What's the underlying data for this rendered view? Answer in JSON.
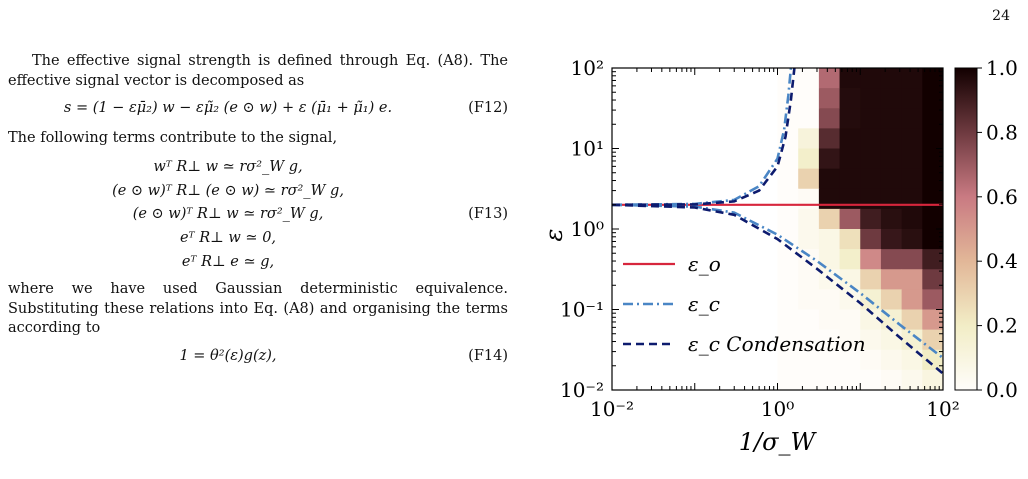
{
  "page_number": "24",
  "text": {
    "p1": "The effective signal strength is defined through Eq. (A8). The effective signal vector is decomposed as",
    "eq_f12": "s = (1 − εμ̄₂) w − εμ̃₂ (e ⊙ w) + ε (μ̄₁ + μ̃₁) e.",
    "eq_f12_tag": "(F12)",
    "p2": "The following terms contribute to the signal,",
    "eq_f13_lines": [
      "wᵀ R⊥ w ≃ rσ²_W g,",
      "(e ⊙ w)ᵀ R⊥ (e ⊙ w) ≃ rσ²_W g,",
      "(e ⊙ w)ᵀ R⊥ w ≃ rσ²_W g,",
      "eᵀ R⊥ w ≃ 0,",
      "eᵀ R⊥ e ≃ g,"
    ],
    "eq_f13_tag": "(F13)",
    "p3": "where we have used Gaussian deterministic equivalence. Substituting these relations into Eq. (A8) and organising the terms according to",
    "eq_f14": "1 = θ²(ε)g(z),",
    "eq_f14_tag": "(F14)"
  },
  "chart_data": {
    "type": "heatmap",
    "xlabel": "1/σ_W",
    "ylabel": "ε",
    "x_scale": "log",
    "y_scale": "log",
    "xlim": [
      0.01,
      100
    ],
    "ylim": [
      0.01,
      100
    ],
    "x_ticks": [
      "10⁻²",
      "10⁰",
      "10²"
    ],
    "y_ticks": [
      "10⁻²",
      "10⁻¹",
      "10⁰",
      "10¹",
      "10²"
    ],
    "colorbar": {
      "min": 0.0,
      "max": 1.0,
      "ticks": [
        "0.0",
        "0.2",
        "0.4",
        "0.6",
        "0.8",
        "1.0"
      ]
    },
    "grid": false,
    "legend_position": "lower-left",
    "heatmap": {
      "x_bin_edges_log10": [
        0.0,
        0.25,
        0.5,
        0.75,
        1.0,
        1.25,
        1.5,
        1.75,
        2.0
      ],
      "y_bin_edges_log10": [
        -2.0,
        -1.75,
        -1.5,
        -1.25,
        -1.0,
        -0.75,
        -0.5,
        -0.25,
        0.0,
        0.25,
        0.5,
        0.75,
        1.0,
        1.25,
        1.5,
        1.75,
        2.0
      ],
      "rows_top_to_bottom": [
        [
          0.0,
          0.0,
          0.65,
          0.97,
          0.97,
          0.97,
          0.97,
          1.0
        ],
        [
          0.0,
          0.0,
          0.7,
          0.96,
          0.97,
          0.97,
          0.97,
          1.0
        ],
        [
          0.0,
          0.0,
          0.75,
          0.96,
          0.97,
          0.97,
          0.97,
          1.0
        ],
        [
          0.0,
          0.12,
          0.85,
          0.97,
          0.97,
          0.97,
          0.97,
          1.0
        ],
        [
          0.0,
          0.18,
          0.93,
          0.97,
          0.97,
          0.97,
          0.97,
          1.0
        ],
        [
          0.0,
          0.3,
          0.97,
          0.97,
          0.97,
          0.97,
          0.97,
          1.0
        ],
        [
          0.0,
          0.02,
          0.97,
          0.97,
          0.97,
          0.97,
          0.97,
          1.0
        ],
        [
          0.0,
          0.05,
          0.3,
          0.7,
          0.9,
          0.95,
          0.97,
          1.0
        ],
        [
          0.0,
          0.05,
          0.08,
          0.25,
          0.8,
          0.92,
          0.95,
          1.0
        ],
        [
          0.0,
          0.02,
          0.08,
          0.18,
          0.55,
          0.75,
          0.75,
          0.9
        ],
        [
          0.0,
          0.02,
          0.05,
          0.08,
          0.3,
          0.5,
          0.5,
          0.8
        ],
        [
          0.0,
          0.02,
          0.02,
          0.05,
          0.15,
          0.3,
          0.5,
          0.7
        ],
        [
          0.0,
          0.0,
          0.02,
          0.02,
          0.08,
          0.15,
          0.3,
          0.5
        ],
        [
          0.0,
          0.0,
          0.0,
          0.02,
          0.05,
          0.08,
          0.15,
          0.3
        ],
        [
          0.0,
          0.0,
          0.0,
          0.0,
          0.02,
          0.05,
          0.08,
          0.2
        ],
        [
          0.0,
          0.0,
          0.0,
          0.0,
          0.0,
          0.02,
          0.05,
          0.1
        ]
      ]
    },
    "series": [
      {
        "name": "ε_o",
        "style": "solid",
        "color": "#d7263d",
        "x": [
          0.01,
          100
        ],
        "y": [
          2.0,
          2.0
        ]
      },
      {
        "name": "ε_c",
        "style": "dashdot",
        "color": "#4a86c5",
        "x": [
          0.01,
          0.1,
          0.3,
          0.6,
          1.0,
          1.2,
          1.35,
          1.45
        ],
        "y": [
          2.0,
          2.05,
          2.3,
          3.4,
          7.5,
          17,
          45,
          100
        ],
        "x2": [
          0.01,
          0.1,
          0.3,
          1.0,
          3.0,
          10,
          30,
          100
        ],
        "y2": [
          2.0,
          1.9,
          1.6,
          0.85,
          0.4,
          0.16,
          0.065,
          0.025
        ]
      },
      {
        "name": "ε_c Condensation",
        "style": "dashed",
        "color": "#0d1b6e",
        "x": [
          0.01,
          0.1,
          0.3,
          0.6,
          1.0,
          1.25,
          1.45,
          1.6
        ],
        "y": [
          2.0,
          2.02,
          2.2,
          3.0,
          6.0,
          14,
          40,
          100
        ],
        "x2": [
          0.01,
          0.1,
          0.3,
          1.0,
          3.0,
          10,
          30,
          100
        ],
        "y2": [
          2.0,
          1.85,
          1.5,
          0.75,
          0.32,
          0.12,
          0.045,
          0.016
        ]
      }
    ]
  }
}
